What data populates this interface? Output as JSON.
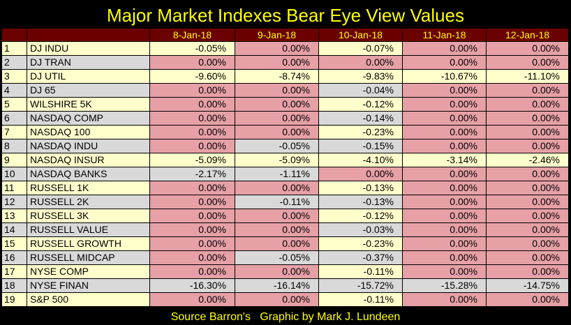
{
  "title": "Major Market Indexes Bear Eye View Values",
  "columns": [
    "8-Jan-18",
    "9-Jan-18",
    "10-Jan-18",
    "11-Jan-18",
    "12-Jan-18"
  ],
  "rows": [
    {
      "num": "1",
      "name": "DJ  INDU",
      "values": [
        "-0.05%",
        "0.00%",
        "-0.07%",
        "0.00%",
        "0.00%"
      ]
    },
    {
      "num": "2",
      "name": "DJ  TRAN",
      "values": [
        "0.00%",
        "0.00%",
        "0.00%",
        "0.00%",
        "0.00%"
      ]
    },
    {
      "num": "3",
      "name": "DJ  UTIL",
      "values": [
        "-9.60%",
        "-8.74%",
        "-9.83%",
        "-10.67%",
        "-11.10%"
      ]
    },
    {
      "num": "4",
      "name": "DJ  65",
      "values": [
        "0.00%",
        "0.00%",
        "-0.04%",
        "0.00%",
        "0.00%"
      ]
    },
    {
      "num": "5",
      "name": "WILSHIRE 5K",
      "values": [
        "0.00%",
        "0.00%",
        "-0.12%",
        "0.00%",
        "0.00%"
      ]
    },
    {
      "num": "6",
      "name": "NASDAQ COMP",
      "values": [
        "0.00%",
        "0.00%",
        "-0.14%",
        "0.00%",
        "0.00%"
      ]
    },
    {
      "num": "7",
      "name": "NASDAQ 100",
      "values": [
        "0.00%",
        "0.00%",
        "-0.23%",
        "0.00%",
        "0.00%"
      ]
    },
    {
      "num": "8",
      "name": "NASDAQ INDU",
      "values": [
        "0.00%",
        "-0.05%",
        "-0.15%",
        "0.00%",
        "0.00%"
      ]
    },
    {
      "num": "9",
      "name": "NASDAQ INSUR",
      "values": [
        "-5.09%",
        "-5.09%",
        "-4.10%",
        "-3.14%",
        "-2.46%"
      ]
    },
    {
      "num": "10",
      "name": "NASDAQ BANKS",
      "values": [
        "-2.17%",
        "-1.11%",
        "0.00%",
        "0.00%",
        "0.00%"
      ]
    },
    {
      "num": "11",
      "name": "RUSSELL 1K",
      "values": [
        "0.00%",
        "0.00%",
        "-0.13%",
        "0.00%",
        "0.00%"
      ]
    },
    {
      "num": "12",
      "name": "RUSSELL 2K",
      "values": [
        "0.00%",
        "-0.11%",
        "-0.13%",
        "0.00%",
        "0.00%"
      ]
    },
    {
      "num": "13",
      "name": "RUSSELL 3K",
      "values": [
        "0.00%",
        "0.00%",
        "-0.12%",
        "0.00%",
        "0.00%"
      ]
    },
    {
      "num": "14",
      "name": "RUSSELL VALUE",
      "values": [
        "0.00%",
        "0.00%",
        "-0.03%",
        "0.00%",
        "0.00%"
      ]
    },
    {
      "num": "15",
      "name": "RUSSELL GROWTH",
      "values": [
        "0.00%",
        "0.00%",
        "-0.23%",
        "0.00%",
        "0.00%"
      ]
    },
    {
      "num": "16",
      "name": "RUSSELL MIDCAP",
      "values": [
        "0.00%",
        "-0.05%",
        "-0.37%",
        "0.00%",
        "0.00%"
      ]
    },
    {
      "num": "17",
      "name": "NYSE COMP",
      "values": [
        "0.00%",
        "0.00%",
        "-0.11%",
        "0.00%",
        "0.00%"
      ]
    },
    {
      "num": "18",
      "name": "NYSE FINAN",
      "values": [
        "-16.30%",
        "-16.14%",
        "-15.72%",
        "-15.28%",
        "-14.75%"
      ]
    },
    {
      "num": "19",
      "name": "S&P 500",
      "values": [
        "0.00%",
        "0.00%",
        "-0.11%",
        "0.00%",
        "0.00%"
      ]
    }
  ],
  "footer": {
    "source": "Source Barron's",
    "credit": "Graphic by Mark J. Lundeen"
  },
  "colors": {
    "background": "#000000",
    "title_text": "#FFFF00",
    "header_bg": "#6B0000",
    "zero_cell": "#E6A0A6",
    "label_light": "#FFFFCC",
    "label_grey": "#D9D9D9"
  }
}
